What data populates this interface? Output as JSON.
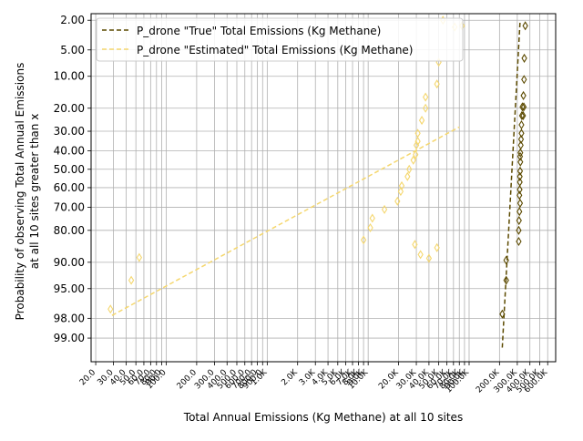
{
  "chart_data": {
    "type": "scatter",
    "title": "",
    "xlabel": "Total Annual Emissions (Kg Methane) at all 10 sites",
    "ylabel_lines": [
      "Probability of observing Total Annual Emissions",
      "at all 10 sites greater than x"
    ],
    "xscale": "log",
    "yscale": "normal-probability",
    "xlim": [
      18,
      720000
    ],
    "ylim": [
      99.6,
      1.6
    ],
    "grid": true,
    "legend_position": "top-left",
    "y_ticks": [
      {
        "value": 2,
        "label": "2.00"
      },
      {
        "value": 5,
        "label": "5.00"
      },
      {
        "value": 10,
        "label": "10.00"
      },
      {
        "value": 20,
        "label": "20.00"
      },
      {
        "value": 30,
        "label": "30.00"
      },
      {
        "value": 40,
        "label": "40.00"
      },
      {
        "value": 50,
        "label": "50.00"
      },
      {
        "value": 60,
        "label": "60.00"
      },
      {
        "value": 70,
        "label": "70.00"
      },
      {
        "value": 80,
        "label": "80.00"
      },
      {
        "value": 90,
        "label": "90.00"
      },
      {
        "value": 95,
        "label": "95.00"
      },
      {
        "value": 98,
        "label": "98.00"
      },
      {
        "value": 99,
        "label": "99.00"
      }
    ],
    "x_ticks": [
      {
        "value": 20,
        "label": "20.0"
      },
      {
        "value": 30,
        "label": "30.0"
      },
      {
        "value": 40,
        "label": "40.0"
      },
      {
        "value": 50,
        "label": "50.0"
      },
      {
        "value": 60,
        "label": "60.0"
      },
      {
        "value": 70,
        "label": "70.0"
      },
      {
        "value": 80,
        "label": "80.0"
      },
      {
        "value": 90,
        "label": "90.0"
      },
      {
        "value": 100,
        "label": "100.0"
      },
      {
        "value": 200,
        "label": "200.0"
      },
      {
        "value": 300,
        "label": "300.0"
      },
      {
        "value": 400,
        "label": "400.0"
      },
      {
        "value": 500,
        "label": "500.0"
      },
      {
        "value": 600,
        "label": "600.0"
      },
      {
        "value": 700,
        "label": "700.0"
      },
      {
        "value": 800,
        "label": "800.0"
      },
      {
        "value": 900,
        "label": "900.0"
      },
      {
        "value": 1000,
        "label": "1.0K"
      },
      {
        "value": 2000,
        "label": "2.0K"
      },
      {
        "value": 3000,
        "label": "3.0K"
      },
      {
        "value": 4000,
        "label": "4.0K"
      },
      {
        "value": 5000,
        "label": "5.0K"
      },
      {
        "value": 6000,
        "label": "6.0K"
      },
      {
        "value": 7000,
        "label": "7.0K"
      },
      {
        "value": 8000,
        "label": "8.0K"
      },
      {
        "value": 9000,
        "label": "9.0K"
      },
      {
        "value": 10000,
        "label": "10.0K"
      },
      {
        "value": 20000,
        "label": "20.0K"
      },
      {
        "value": 30000,
        "label": "30.0K"
      },
      {
        "value": 40000,
        "label": "40.0K"
      },
      {
        "value": 50000,
        "label": "50.0K"
      },
      {
        "value": 60000,
        "label": "60.0K"
      },
      {
        "value": 70000,
        "label": "70.0K"
      },
      {
        "value": 80000,
        "label": "80.0K"
      },
      {
        "value": 90000,
        "label": "90.0K"
      },
      {
        "value": 100000,
        "label": "100.0K"
      },
      {
        "value": 200000,
        "label": "200.0K"
      },
      {
        "value": 300000,
        "label": "300.0K"
      },
      {
        "value": 400000,
        "label": "400.0K"
      },
      {
        "value": 500000,
        "label": "500.0K"
      },
      {
        "value": 600000,
        "label": "600.0K"
      }
    ],
    "series": [
      {
        "name": "P_drone \"True\" Total Emissions (Kg Methane)",
        "color": "#5c4a00",
        "fit_line": {
          "x": [
            213000,
            320000
          ],
          "y": [
            99.3,
            2.0
          ]
        },
        "points": [
          {
            "x": 360000,
            "y": 2.4
          },
          {
            "x": 352000,
            "y": 6.3
          },
          {
            "x": 350000,
            "y": 10.8
          },
          {
            "x": 345000,
            "y": 15.5
          },
          {
            "x": 337000,
            "y": 19.5
          },
          {
            "x": 348000,
            "y": 19.5
          },
          {
            "x": 333000,
            "y": 23.0
          },
          {
            "x": 343000,
            "y": 23.0
          },
          {
            "x": 330000,
            "y": 27.0
          },
          {
            "x": 330000,
            "y": 31.0
          },
          {
            "x": 327000,
            "y": 34.0
          },
          {
            "x": 325000,
            "y": 37.0
          },
          {
            "x": 322000,
            "y": 41.0
          },
          {
            "x": 320000,
            "y": 43.0
          },
          {
            "x": 322000,
            "y": 46.0
          },
          {
            "x": 320000,
            "y": 51.0
          },
          {
            "x": 318000,
            "y": 54.0
          },
          {
            "x": 318000,
            "y": 57.0
          },
          {
            "x": 317000,
            "y": 61.0
          },
          {
            "x": 315000,
            "y": 64.0
          },
          {
            "x": 320000,
            "y": 68.0
          },
          {
            "x": 315000,
            "y": 72.0
          },
          {
            "x": 312000,
            "y": 76.0
          },
          {
            "x": 310000,
            "y": 80.0
          },
          {
            "x": 310000,
            "y": 84.0
          },
          {
            "x": 233000,
            "y": 89.5
          },
          {
            "x": 233000,
            "y": 93.7
          },
          {
            "x": 213000,
            "y": 97.7
          }
        ]
      },
      {
        "name": "P_drone \"Estimated\" Total Emissions (Kg Methane)",
        "color": "#f5d76e",
        "fit_line": {
          "x": [
            29,
            80000
          ],
          "y": [
            97.8,
            28.0
          ]
        },
        "points": [
          {
            "x": 29000,
            "y": 85.0
          },
          {
            "x": 33000,
            "y": 88.0
          },
          {
            "x": 40000,
            "y": 89.0
          },
          {
            "x": 48000,
            "y": 86.0
          },
          {
            "x": 55000,
            "y": 2.0
          },
          {
            "x": 85000,
            "y": 2.4
          },
          {
            "x": 28,
            "y": 97.3
          },
          {
            "x": 45,
            "y": 93.7
          },
          {
            "x": 54,
            "y": 88.8
          },
          {
            "x": 9000,
            "y": 83.5
          },
          {
            "x": 10500,
            "y": 79.0
          },
          {
            "x": 11000,
            "y": 75.0
          },
          {
            "x": 14500,
            "y": 71.0
          },
          {
            "x": 19500,
            "y": 67.0
          },
          {
            "x": 21000,
            "y": 62.0
          },
          {
            "x": 21500,
            "y": 59.0
          },
          {
            "x": 24500,
            "y": 54.0
          },
          {
            "x": 25500,
            "y": 50.0
          },
          {
            "x": 28000,
            "y": 45.0
          },
          {
            "x": 29500,
            "y": 42.0
          },
          {
            "x": 30000,
            "y": 37.0
          },
          {
            "x": 31000,
            "y": 35.0
          },
          {
            "x": 31000,
            "y": 31.0
          },
          {
            "x": 34000,
            "y": 25.0
          },
          {
            "x": 37000,
            "y": 20.0
          },
          {
            "x": 37000,
            "y": 16.0
          },
          {
            "x": 48000,
            "y": 12.0
          },
          {
            "x": 50000,
            "y": 7.0
          },
          {
            "x": 72000,
            "y": 2.5
          }
        ]
      }
    ]
  }
}
